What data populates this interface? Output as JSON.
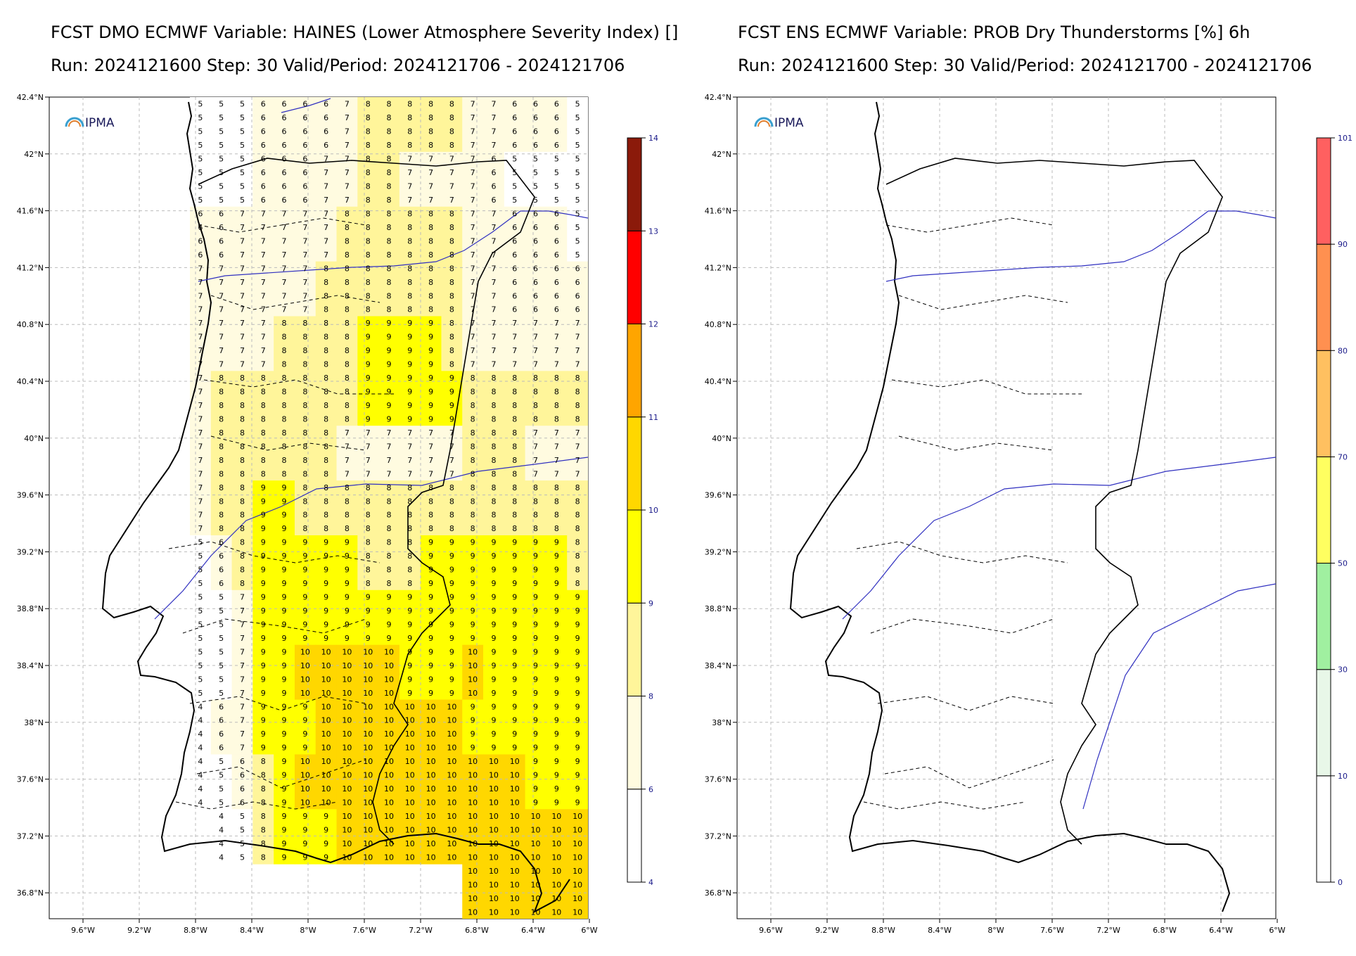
{
  "left_panel": {
    "title_line1": "FCST DMO ECMWF Variable: HAINES (Lower Atmosphere Severity Index) []",
    "title_line2": "Run: 2024121600 Step: 30 Valid/Period: 2024121706 - 2024121706",
    "logo_text": "IPMA",
    "colorbar_labels": [
      "4",
      "6",
      "8",
      "9",
      "10",
      "11",
      "12",
      "13",
      "14"
    ],
    "colors": [
      "#ffffff",
      "#fffbe0",
      "#fff59a",
      "#ffff00",
      "#ffd700",
      "#ffa500",
      "#ff0000",
      "#8b1a0a"
    ]
  },
  "right_panel": {
    "title_line1": "FCST ENS ECMWF Variable: PROB Dry Thunderstorms [%] 6h",
    "title_line2": "Run: 2024121600 Step: 30 Valid/Period: 2024121700 - 2024121706",
    "logo_text": "IPMA",
    "colorbar_labels": [
      "0",
      "10",
      "30",
      "50",
      "70",
      "80",
      "90",
      "101"
    ],
    "colors": [
      "#ffffff",
      "#e8f7e8",
      "#a0f0a0",
      "#ffff60",
      "#ffc060",
      "#ff9050",
      "#ff6060"
    ]
  },
  "lat_labels": [
    "42.4°N",
    "42°N",
    "41.6°N",
    "41.2°N",
    "40.8°N",
    "40.4°N",
    "40°N",
    "39.6°N",
    "39.2°N",
    "38.8°N",
    "38.4°N",
    "38°N",
    "37.6°N",
    "37.2°N",
    "36.8°N"
  ],
  "lon_labels": [
    "9.6°W",
    "9.2°W",
    "8.8°W",
    "8.4°W",
    "8°W",
    "7.6°W",
    "7.2°W",
    "6.8°W",
    "6.4°W",
    "6°W"
  ],
  "haines_grid": [
    [
      "5",
      "5",
      "5",
      "6",
      "6",
      "6",
      "6",
      "7",
      "8",
      "8",
      "8",
      "8",
      "8",
      "7",
      "7",
      "6",
      "6",
      "6",
      "5"
    ],
    [
      "5",
      "5",
      "5",
      "6",
      "6",
      "6",
      "7",
      "7",
      "8",
      "8",
      "7",
      "7",
      "7",
      "7",
      "6",
      "5",
      "5",
      "5",
      "5"
    ],
    [
      "6",
      "6",
      "7",
      "7",
      "7",
      "7",
      "7",
      "8",
      "8",
      "8",
      "8",
      "8",
      "8",
      "7",
      "7",
      "6",
      "6",
      "6",
      "5"
    ],
    [
      "7",
      "7",
      "7",
      "7",
      "7",
      "7",
      "8",
      "8",
      "8",
      "8",
      "8",
      "8",
      "8",
      "7",
      "7",
      "6",
      "6",
      "6",
      "6"
    ],
    [
      "7",
      "7",
      "7",
      "7",
      "8",
      "8",
      "8",
      "8",
      "9",
      "9",
      "9",
      "9",
      "8",
      "7",
      "7",
      "7",
      "7",
      "7",
      "7"
    ],
    [
      "7",
      "8",
      "8",
      "8",
      "8",
      "8",
      "8",
      "8",
      "9",
      "9",
      "9",
      "9",
      "9",
      "8",
      "8",
      "8",
      "8",
      "8",
      "8"
    ],
    [
      "7",
      "8",
      "8",
      "8",
      "8",
      "8",
      "8",
      "7",
      "7",
      "7",
      "7",
      "7",
      "7",
      "8",
      "8",
      "8",
      "7",
      "7",
      "7"
    ],
    [
      "7",
      "8",
      "8",
      "9",
      "9",
      "8",
      "8",
      "8",
      "8",
      "8",
      "8",
      "8",
      "8",
      "8",
      "8",
      "8",
      "8",
      "8",
      "8"
    ],
    [
      "5",
      "6",
      "8",
      "9",
      "9",
      "9",
      "9",
      "9",
      "8",
      "8",
      "8",
      "9",
      "9",
      "9",
      "9",
      "9",
      "9",
      "9",
      "8"
    ],
    [
      "5",
      "5",
      "7",
      "9",
      "9",
      "9",
      "9",
      "9",
      "9",
      "9",
      "9",
      "9",
      "9",
      "9",
      "9",
      "9",
      "9",
      "9",
      "9"
    ],
    [
      "5",
      "5",
      "7",
      "9",
      "9",
      "10",
      "10",
      "10",
      "10",
      "10",
      "9",
      "9",
      "9",
      "10",
      "9",
      "9",
      "9",
      "9",
      "9"
    ],
    [
      "4",
      "6",
      "7",
      "9",
      "9",
      "9",
      "10",
      "10",
      "10",
      "10",
      "10",
      "10",
      "10",
      "9",
      "9",
      "9",
      "9",
      "9",
      "9"
    ],
    [
      "4",
      "5",
      "6",
      "8",
      "9",
      "10",
      "10",
      "10",
      "10",
      "10",
      "10",
      "10",
      "10",
      "10",
      "10",
      "10",
      "9",
      "9",
      "9"
    ],
    [
      "",
      "4",
      "5",
      "8",
      "9",
      "9",
      "9",
      "10",
      "10",
      "10",
      "10",
      "10",
      "10",
      "10",
      "10",
      "10",
      "10",
      "10",
      "10"
    ],
    [
      "",
      "",
      "",
      "",
      "",
      "",
      "",
      "",
      "",
      "",
      "",
      "",
      "",
      "10",
      "10",
      "10",
      "10",
      "10",
      "10"
    ]
  ]
}
